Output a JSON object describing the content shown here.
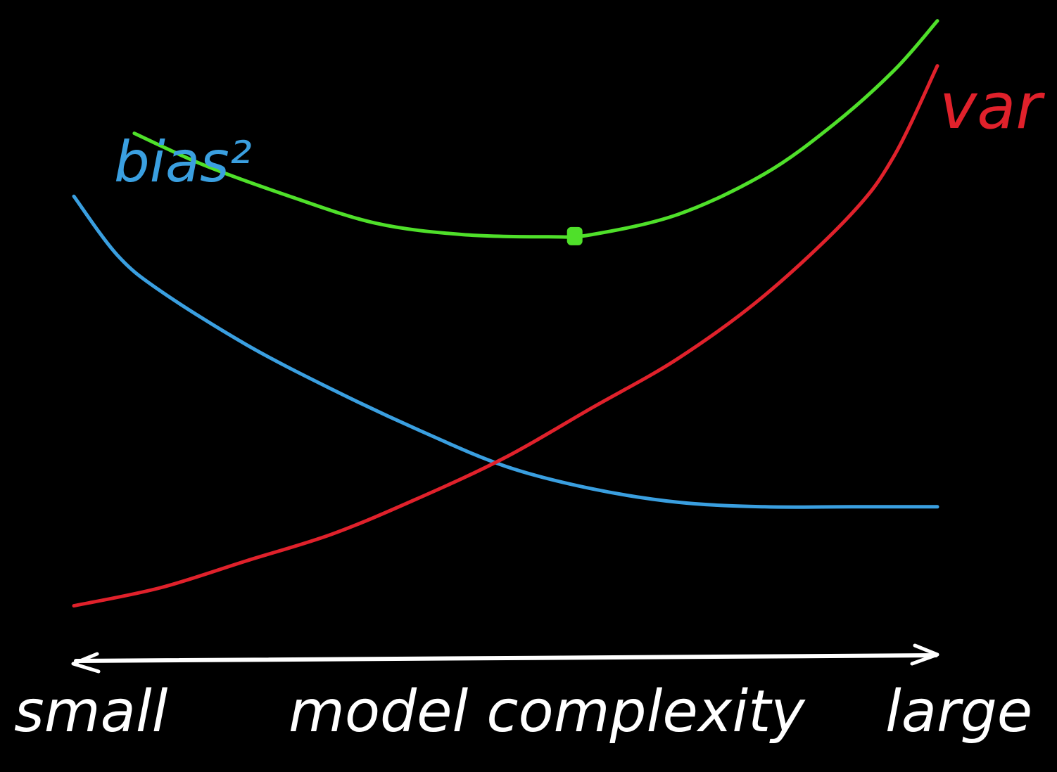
{
  "colors": {
    "background": "#000000",
    "bias": "#3a9fe0",
    "variance": "#e0212b",
    "total": "#4fe02a",
    "axis": "#ffffff"
  },
  "chart_data": {
    "type": "line",
    "xlabel": "model complexity",
    "xlim_labels": {
      "left": "small",
      "right": "large"
    },
    "x_axis_double_arrow": true,
    "grid": false,
    "optimum_marker_x": 0.58,
    "series": [
      {
        "name": "bias²",
        "color": "#3a9fe0",
        "x": [
          0.0,
          0.05,
          0.1,
          0.2,
          0.3,
          0.4,
          0.5,
          0.6,
          0.7,
          0.8,
          0.9,
          1.0
        ],
        "y": [
          0.97,
          0.84,
          0.76,
          0.64,
          0.54,
          0.45,
          0.37,
          0.32,
          0.29,
          0.28,
          0.28,
          0.28
        ]
      },
      {
        "name": "var",
        "color": "#e0212b",
        "x": [
          0.0,
          0.1,
          0.2,
          0.3,
          0.4,
          0.5,
          0.6,
          0.7,
          0.8,
          0.9,
          0.95,
          1.0
        ],
        "y": [
          0.06,
          0.1,
          0.16,
          0.22,
          0.3,
          0.39,
          0.5,
          0.61,
          0.75,
          0.93,
          1.06,
          1.26
        ]
      },
      {
        "name": "",
        "color": "#4fe02a",
        "x": [
          0.07,
          0.15,
          0.25,
          0.35,
          0.45,
          0.55,
          0.6,
          0.7,
          0.8,
          0.88,
          0.95,
          1.0
        ],
        "y": [
          1.11,
          1.04,
          0.97,
          0.91,
          0.885,
          0.88,
          0.885,
          0.93,
          1.02,
          1.13,
          1.25,
          1.36
        ]
      }
    ],
    "series_labels": [
      "bias²",
      "var"
    ]
  }
}
